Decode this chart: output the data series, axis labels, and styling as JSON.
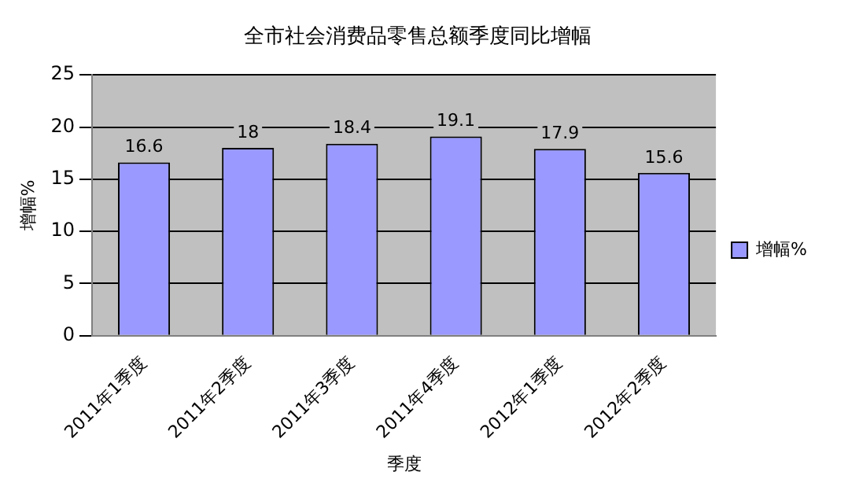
{
  "chart_data": {
    "type": "bar",
    "title": "全市社会消费品零售总额季度同比增幅",
    "xlabel": "季度",
    "ylabel": "增幅%",
    "categories": [
      "2011年1季度",
      "2011年2季度",
      "2011年3季度",
      "2011年4季度",
      "2012年1季度",
      "2012年2季度"
    ],
    "series": [
      {
        "name": "增幅%",
        "color": "#9999ff",
        "values": [
          16.6,
          18,
          18.4,
          19.1,
          17.9,
          15.6
        ]
      }
    ],
    "ylim": [
      0,
      25
    ],
    "yticks": [
      0,
      5,
      10,
      15,
      20,
      25
    ],
    "grid": "y",
    "legend": "right",
    "data_labels": true
  }
}
